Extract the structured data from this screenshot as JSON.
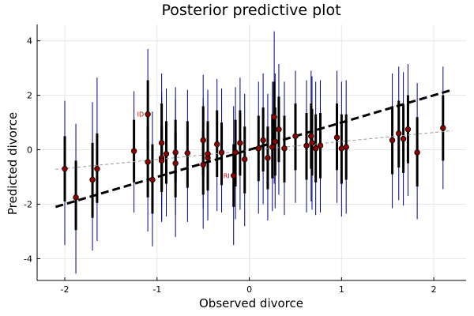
{
  "chart_data": {
    "type": "scatter",
    "title": "Posterior predictive plot",
    "xlabel": "Observed divorce",
    "ylabel": "Predicted divorce",
    "xlim": [
      -2.3,
      2.35
    ],
    "ylim": [
      -4.8,
      4.6
    ],
    "xticks": [
      -2,
      -1,
      0,
      1,
      2
    ],
    "xtick_labels": [
      "-2",
      "-1",
      "0",
      "1",
      "2"
    ],
    "yticks": [
      -4,
      -2,
      0,
      2,
      4
    ],
    "ytick_labels": [
      "-4",
      "-2",
      "0",
      "2",
      "4"
    ],
    "grid": true,
    "legend": "none",
    "colors": {
      "thin_interval": "#00008b",
      "thick_interval": "#000000",
      "point_fill": "#8b0000",
      "point_edge": "#000000",
      "identity_line": "#000000",
      "regression_line": "#999999",
      "annotation": "#cc0000"
    },
    "identity_line": {
      "x": [
        -2.1,
        2.2
      ],
      "y": [
        -2.1,
        2.2
      ]
    },
    "regression_line": {
      "x": [
        -2.1,
        2.2
      ],
      "y": [
        -0.72,
        0.7
      ]
    },
    "points": [
      {
        "x": -2.0,
        "y": -0.7,
        "t": [
          -1.9,
          0.5
        ],
        "w": [
          -3.5,
          1.8
        ]
      },
      {
        "x": -1.88,
        "y": -1.75,
        "t": [
          -2.95,
          -0.4
        ],
        "w": [
          -4.55,
          0.95
        ]
      },
      {
        "x": -1.7,
        "y": -1.1,
        "t": [
          -2.5,
          0.25
        ],
        "w": [
          -3.7,
          1.75
        ]
      },
      {
        "x": -1.65,
        "y": -0.7,
        "t": [
          -1.95,
          0.6
        ],
        "w": [
          -3.35,
          2.65
        ]
      },
      {
        "x": -1.25,
        "y": -0.05,
        "t": [
          -1.2,
          1.1
        ],
        "w": [
          -2.3,
          2.15
        ]
      },
      {
        "x": -1.1,
        "y": 1.3,
        "t": [
          0.0,
          2.55
        ],
        "w": [
          -1.1,
          3.7
        ]
      },
      {
        "x": -1.1,
        "y": -0.45,
        "t": [
          -1.75,
          0.85
        ],
        "w": [
          -3.0,
          2.2
        ]
      },
      {
        "x": -1.05,
        "y": -1.1,
        "t": [
          -2.35,
          0.2
        ],
        "w": [
          -3.55,
          1.4
        ]
      },
      {
        "x": -0.95,
        "y": -0.3,
        "t": [
          -1.45,
          0.9
        ],
        "w": [
          -2.6,
          2.15
        ]
      },
      {
        "x": -0.95,
        "y": -0.4,
        "t": [
          -1.55,
          0.75
        ],
        "w": [
          -2.65,
          1.95
        ]
      },
      {
        "x": -0.95,
        "y": 0.25,
        "t": [
          -0.9,
          1.7
        ],
        "w": [
          -2.0,
          2.8
        ]
      },
      {
        "x": -0.9,
        "y": -0.15,
        "t": [
          -1.25,
          1.05
        ],
        "w": [
          -2.45,
          2.25
        ]
      },
      {
        "x": -0.8,
        "y": -0.1,
        "t": [
          -1.2,
          1.1
        ],
        "w": [
          -2.4,
          2.3
        ]
      },
      {
        "x": -0.8,
        "y": -0.5,
        "t": [
          -1.75,
          0.65
        ],
        "w": [
          -3.2,
          1.85
        ]
      },
      {
        "x": -0.67,
        "y": -0.12,
        "t": [
          -1.4,
          1.05
        ],
        "w": [
          -2.65,
          2.2
        ]
      },
      {
        "x": -0.5,
        "y": 0.35,
        "t": [
          -0.95,
          1.6
        ],
        "w": [
          -2.15,
          2.75
        ]
      },
      {
        "x": -0.5,
        "y": -0.55,
        "t": [
          -1.65,
          0.7
        ],
        "w": [
          -2.9,
          1.9
        ]
      },
      {
        "x": -0.45,
        "y": -0.3,
        "t": [
          -1.5,
          0.9
        ],
        "w": [
          -2.6,
          2.05
        ]
      },
      {
        "x": -0.45,
        "y": -0.15,
        "t": [
          -1.35,
          1.05
        ],
        "w": [
          -2.5,
          2.2
        ]
      },
      {
        "x": -0.35,
        "y": 0.2,
        "t": [
          -1.0,
          1.45
        ],
        "w": [
          -2.25,
          2.6
        ]
      },
      {
        "x": -0.3,
        "y": -0.1,
        "t": [
          -1.3,
          1.0
        ],
        "w": [
          -2.3,
          2.25
        ]
      },
      {
        "x": -0.17,
        "y": -0.95,
        "t": [
          -2.1,
          0.2
        ],
        "w": [
          -3.5,
          1.6
        ]
      },
      {
        "x": -0.15,
        "y": -0.1,
        "t": [
          -1.35,
          1.1
        ],
        "w": [
          -2.55,
          2.3
        ]
      },
      {
        "x": -0.1,
        "y": 0.25,
        "t": [
          -0.95,
          1.45
        ],
        "w": [
          -2.2,
          2.65
        ]
      },
      {
        "x": -0.05,
        "y": -0.35,
        "t": [
          -1.6,
          0.85
        ],
        "w": [
          -2.8,
          2.05
        ]
      },
      {
        "x": 0.1,
        "y": 0.05,
        "t": [
          -1.15,
          1.25
        ],
        "w": [
          -2.35,
          2.5
        ]
      },
      {
        "x": 0.15,
        "y": 0.35,
        "t": [
          -0.8,
          1.55
        ],
        "w": [
          -2.0,
          2.8
        ]
      },
      {
        "x": 0.2,
        "y": -0.3,
        "t": [
          -1.45,
          0.85
        ],
        "w": [
          -2.6,
          2.05
        ]
      },
      {
        "x": 0.25,
        "y": 0.1,
        "t": [
          -1.05,
          1.3
        ],
        "w": [
          -2.25,
          2.5
        ]
      },
      {
        "x": 0.27,
        "y": 1.2,
        "t": [
          0.0,
          2.5
        ],
        "w": [
          -1.25,
          4.35
        ]
      },
      {
        "x": 0.28,
        "y": 0.3,
        "t": [
          -0.95,
          1.55
        ],
        "w": [
          -2.15,
          2.8
        ]
      },
      {
        "x": 0.32,
        "y": 0.75,
        "t": [
          -0.45,
          1.95
        ],
        "w": [
          -1.65,
          3.15
        ]
      },
      {
        "x": 0.38,
        "y": 0.05,
        "t": [
          -1.2,
          1.25
        ],
        "w": [
          -2.4,
          2.5
        ]
      },
      {
        "x": 0.5,
        "y": 0.5,
        "t": [
          -0.75,
          1.7
        ],
        "w": [
          -1.95,
          2.9
        ]
      },
      {
        "x": 0.62,
        "y": 0.15,
        "t": [
          -1.1,
          1.35
        ],
        "w": [
          -2.3,
          2.55
        ]
      },
      {
        "x": 0.67,
        "y": 0.5,
        "t": [
          -0.7,
          1.7
        ],
        "w": [
          -1.9,
          2.9
        ]
      },
      {
        "x": 0.68,
        "y": 0.25,
        "t": [
          -0.95,
          1.5
        ],
        "w": [
          -2.2,
          2.7
        ]
      },
      {
        "x": 0.72,
        "y": 0.05,
        "t": [
          -1.2,
          1.3
        ],
        "w": [
          -2.4,
          2.5
        ]
      },
      {
        "x": 0.77,
        "y": 0.15,
        "t": [
          -1.05,
          1.35
        ],
        "w": [
          -2.3,
          2.55
        ]
      },
      {
        "x": 0.95,
        "y": 0.45,
        "t": [
          -0.75,
          1.7
        ],
        "w": [
          -1.95,
          2.9
        ]
      },
      {
        "x": 1.0,
        "y": 0.05,
        "t": [
          -1.25,
          1.3
        ],
        "w": [
          -2.45,
          2.5
        ]
      },
      {
        "x": 1.05,
        "y": 0.1,
        "t": [
          -1.1,
          1.3
        ],
        "w": [
          -2.35,
          2.55
        ]
      },
      {
        "x": 1.55,
        "y": 0.35,
        "t": [
          -0.9,
          1.6
        ],
        "w": [
          -2.15,
          2.8
        ]
      },
      {
        "x": 1.62,
        "y": 0.6,
        "t": [
          -0.65,
          1.8
        ],
        "w": [
          -1.85,
          3.05
        ]
      },
      {
        "x": 1.67,
        "y": 0.4,
        "t": [
          -0.85,
          1.65
        ],
        "w": [
          -2.05,
          2.85
        ]
      },
      {
        "x": 1.72,
        "y": 0.75,
        "t": [
          -0.5,
          2.0
        ],
        "w": [
          -1.7,
          3.15
        ]
      },
      {
        "x": 1.82,
        "y": -0.1,
        "t": [
          -1.35,
          1.2
        ],
        "w": [
          -2.55,
          2.45
        ]
      },
      {
        "x": 2.1,
        "y": 0.8,
        "t": [
          -0.4,
          2.0
        ],
        "w": [
          -1.45,
          3.05
        ]
      }
    ],
    "annotations": [
      {
        "text": "ID",
        "x": -1.1,
        "y": 1.3
      },
      {
        "text": "RI",
        "x": -0.17,
        "y": -0.95
      }
    ]
  }
}
